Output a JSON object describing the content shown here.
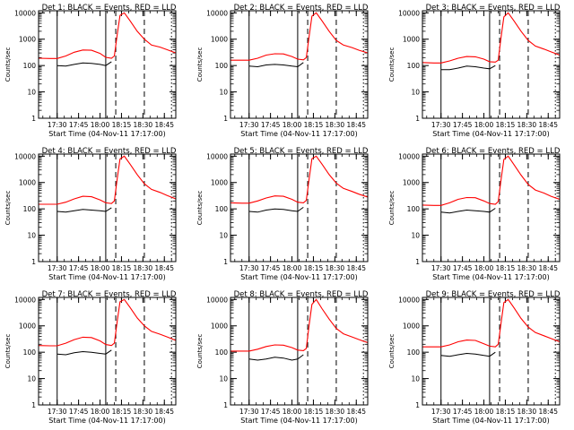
{
  "colors": {
    "events": "#000000",
    "lld": "#ff0000",
    "axes": "#000000",
    "background": "#ffffff"
  },
  "x_ticks": [
    "17:30",
    "17:45",
    "18:00",
    "18:15",
    "18:30",
    "18:45"
  ],
  "y_ticks": [
    "1",
    "10",
    "100",
    "1000",
    "10000"
  ],
  "shared": {
    "ylabel": "Counts/sec",
    "xlabel": "Start Time (04-Nov-11 17:17:00)",
    "y_scale": "log",
    "ylim": [
      1,
      12000
    ],
    "xlim_minutes_after_1717": [
      0,
      96
    ],
    "vertical_markers": {
      "solid": [
        "17:30",
        "18:04"
      ],
      "dashed": [
        "18:11",
        "18:31"
      ],
      "dotted": [
        "18:50"
      ]
    }
  },
  "chart_data": [
    {
      "type": "line",
      "title": "Det 1: BLACK = Events, RED = LLD",
      "x": [
        "17:17",
        "17:25",
        "17:30",
        "17:36",
        "17:42",
        "17:48",
        "17:54",
        "18:00",
        "18:04",
        "18:08",
        "18:10",
        "18:12",
        "18:14",
        "18:17",
        "18:21",
        "18:26",
        "18:31",
        "18:36",
        "18:42",
        "18:47",
        "18:53"
      ],
      "series": [
        {
          "name": "LLD",
          "color": "#ff0000",
          "values": [
            190,
            185,
            185,
            230,
            320,
            390,
            380,
            290,
            205,
            190,
            230,
            1500,
            8000,
            10000,
            5000,
            2000,
            1000,
            600,
            500,
            400,
            300
          ]
        },
        {
          "name": "Events",
          "color": "#000000",
          "values": [
            null,
            null,
            100,
            95,
            110,
            125,
            120,
            110,
            100,
            140,
            null,
            null,
            null,
            null,
            null,
            null,
            null,
            null,
            null,
            null,
            null
          ]
        }
      ]
    },
    {
      "type": "line",
      "title": "Det 2: BLACK = Events, RED = LLD",
      "x": [
        "17:17",
        "17:25",
        "17:30",
        "17:36",
        "17:42",
        "17:48",
        "17:54",
        "18:00",
        "18:04",
        "18:08",
        "18:10",
        "18:12",
        "18:14",
        "18:17",
        "18:21",
        "18:26",
        "18:31",
        "18:36",
        "18:42",
        "18:47",
        "18:53"
      ],
      "series": [
        {
          "name": "LLD",
          "color": "#ff0000",
          "values": [
            160,
            160,
            160,
            190,
            250,
            280,
            275,
            220,
            175,
            165,
            200,
            1300,
            7500,
            10000,
            5000,
            2000,
            900,
            600,
            480,
            380,
            300
          ]
        },
        {
          "name": "Events",
          "color": "#000000",
          "values": [
            null,
            null,
            95,
            90,
            105,
            110,
            105,
            95,
            90,
            130,
            null,
            null,
            null,
            null,
            null,
            null,
            null,
            null,
            null,
            null,
            null
          ]
        }
      ]
    },
    {
      "type": "line",
      "title": "Det 3: BLACK = Events, RED = LLD",
      "x": [
        "17:17",
        "17:25",
        "17:30",
        "17:36",
        "17:42",
        "17:48",
        "17:54",
        "18:00",
        "18:04",
        "18:08",
        "18:10",
        "18:12",
        "18:14",
        "18:17",
        "18:21",
        "18:26",
        "18:31",
        "18:36",
        "18:42",
        "18:47",
        "18:53"
      ],
      "series": [
        {
          "name": "LLD",
          "color": "#ff0000",
          "values": [
            130,
            125,
            125,
            150,
            190,
            220,
            215,
            175,
            140,
            135,
            160,
            1200,
            7000,
            10000,
            5000,
            2000,
            900,
            550,
            420,
            330,
            250
          ]
        },
        {
          "name": "Events",
          "color": "#000000",
          "values": [
            null,
            null,
            70,
            70,
            80,
            95,
            90,
            80,
            75,
            100,
            null,
            null,
            null,
            null,
            null,
            null,
            null,
            null,
            null,
            null,
            null
          ]
        }
      ]
    },
    {
      "type": "line",
      "title": "Det 4: BLACK = Events, RED = LLD",
      "x": [
        "17:17",
        "17:25",
        "17:30",
        "17:36",
        "17:42",
        "17:48",
        "17:54",
        "18:00",
        "18:04",
        "18:08",
        "18:10",
        "18:12",
        "18:14",
        "18:17",
        "18:21",
        "18:26",
        "18:31",
        "18:36",
        "18:42",
        "18:47",
        "18:53"
      ],
      "series": [
        {
          "name": "LLD",
          "color": "#ff0000",
          "values": [
            150,
            150,
            150,
            180,
            240,
            300,
            290,
            220,
            170,
            160,
            200,
            1400,
            7800,
            10000,
            5000,
            2000,
            900,
            550,
            420,
            320,
            240
          ]
        },
        {
          "name": "Events",
          "color": "#000000",
          "values": [
            null,
            null,
            80,
            75,
            85,
            95,
            90,
            85,
            80,
            110,
            null,
            null,
            null,
            null,
            null,
            null,
            null,
            null,
            null,
            null,
            null
          ]
        }
      ]
    },
    {
      "type": "line",
      "title": "Det 5: BLACK = Events, RED = LLD",
      "x": [
        "17:17",
        "17:25",
        "17:30",
        "17:36",
        "17:42",
        "17:48",
        "17:54",
        "18:00",
        "18:04",
        "18:08",
        "18:10",
        "18:12",
        "18:14",
        "18:17",
        "18:21",
        "18:26",
        "18:31",
        "18:36",
        "18:42",
        "18:47",
        "18:53"
      ],
      "series": [
        {
          "name": "LLD",
          "color": "#ff0000",
          "values": [
            170,
            165,
            165,
            200,
            260,
            310,
            300,
            230,
            180,
            170,
            210,
            1400,
            8000,
            10000,
            5000,
            2000,
            950,
            600,
            460,
            360,
            280
          ]
        },
        {
          "name": "Events",
          "color": "#000000",
          "values": [
            null,
            null,
            80,
            75,
            90,
            100,
            95,
            85,
            80,
            115,
            null,
            null,
            null,
            null,
            null,
            null,
            null,
            null,
            null,
            null,
            null
          ]
        }
      ]
    },
    {
      "type": "line",
      "title": "Det 6: BLACK = Events, RED = LLD",
      "x": [
        "17:17",
        "17:25",
        "17:30",
        "17:36",
        "17:42",
        "17:48",
        "17:54",
        "18:00",
        "18:04",
        "18:08",
        "18:10",
        "18:12",
        "18:14",
        "18:17",
        "18:21",
        "18:26",
        "18:31",
        "18:36",
        "18:42",
        "18:47",
        "18:53"
      ],
      "series": [
        {
          "name": "LLD",
          "color": "#ff0000",
          "values": [
            140,
            135,
            135,
            170,
            230,
            270,
            265,
            200,
            160,
            150,
            190,
            1300,
            7500,
            10000,
            4800,
            1900,
            850,
            520,
            400,
            300,
            230
          ]
        },
        {
          "name": "Events",
          "color": "#000000",
          "values": [
            null,
            null,
            75,
            70,
            80,
            90,
            85,
            80,
            75,
            105,
            null,
            null,
            null,
            null,
            null,
            null,
            null,
            null,
            null,
            null,
            null
          ]
        }
      ]
    },
    {
      "type": "line",
      "title": "Det 7: BLACK = Events, RED = LLD",
      "x": [
        "17:17",
        "17:25",
        "17:30",
        "17:36",
        "17:42",
        "17:48",
        "17:54",
        "18:00",
        "18:04",
        "18:08",
        "18:10",
        "18:12",
        "18:14",
        "18:17",
        "18:21",
        "18:26",
        "18:31",
        "18:36",
        "18:42",
        "18:47",
        "18:53"
      ],
      "series": [
        {
          "name": "LLD",
          "color": "#ff0000",
          "values": [
            180,
            175,
            175,
            220,
            300,
            370,
            360,
            270,
            195,
            180,
            220,
            1500,
            8200,
            10000,
            5000,
            2000,
            1000,
            620,
            480,
            380,
            280
          ]
        },
        {
          "name": "Events",
          "color": "#000000",
          "values": [
            null,
            null,
            85,
            80,
            95,
            105,
            100,
            90,
            85,
            120,
            null,
            null,
            null,
            null,
            null,
            null,
            null,
            null,
            null,
            null,
            null
          ]
        }
      ]
    },
    {
      "type": "line",
      "title": "Det 8: BLACK = Events, RED = LLD",
      "x": [
        "17:17",
        "17:25",
        "17:30",
        "17:36",
        "17:42",
        "17:48",
        "17:54",
        "18:00",
        "18:04",
        "18:08",
        "18:10",
        "18:12",
        "18:14",
        "18:17",
        "18:21",
        "18:26",
        "18:31",
        "18:36",
        "18:42",
        "18:47",
        "18:53"
      ],
      "series": [
        {
          "name": "LLD",
          "color": "#ff0000",
          "values": [
            110,
            110,
            110,
            130,
            165,
            190,
            185,
            150,
            120,
            115,
            140,
            1100,
            6500,
            10000,
            4500,
            1800,
            800,
            500,
            380,
            300,
            230
          ]
        },
        {
          "name": "Events",
          "color": "#000000",
          "values": [
            null,
            null,
            55,
            50,
            55,
            65,
            60,
            50,
            55,
            80,
            null,
            null,
            null,
            null,
            null,
            null,
            null,
            null,
            null,
            null,
            null
          ]
        }
      ]
    },
    {
      "type": "line",
      "title": "Det 9: BLACK = Events, RED = LLD",
      "x": [
        "17:17",
        "17:25",
        "17:30",
        "17:36",
        "17:42",
        "17:48",
        "17:54",
        "18:00",
        "18:04",
        "18:08",
        "18:10",
        "18:12",
        "18:14",
        "18:17",
        "18:21",
        "18:26",
        "18:31",
        "18:36",
        "18:42",
        "18:47",
        "18:53"
      ],
      "series": [
        {
          "name": "LLD",
          "color": "#ff0000",
          "values": [
            160,
            160,
            160,
            190,
            250,
            290,
            280,
            210,
            170,
            160,
            200,
            1300,
            7600,
            10000,
            4900,
            1900,
            900,
            560,
            420,
            330,
            250
          ]
        },
        {
          "name": "Events",
          "color": "#000000",
          "values": [
            null,
            null,
            75,
            70,
            80,
            90,
            85,
            75,
            70,
            100,
            null,
            null,
            null,
            null,
            null,
            null,
            null,
            null,
            null,
            null,
            null
          ]
        }
      ]
    }
  ]
}
